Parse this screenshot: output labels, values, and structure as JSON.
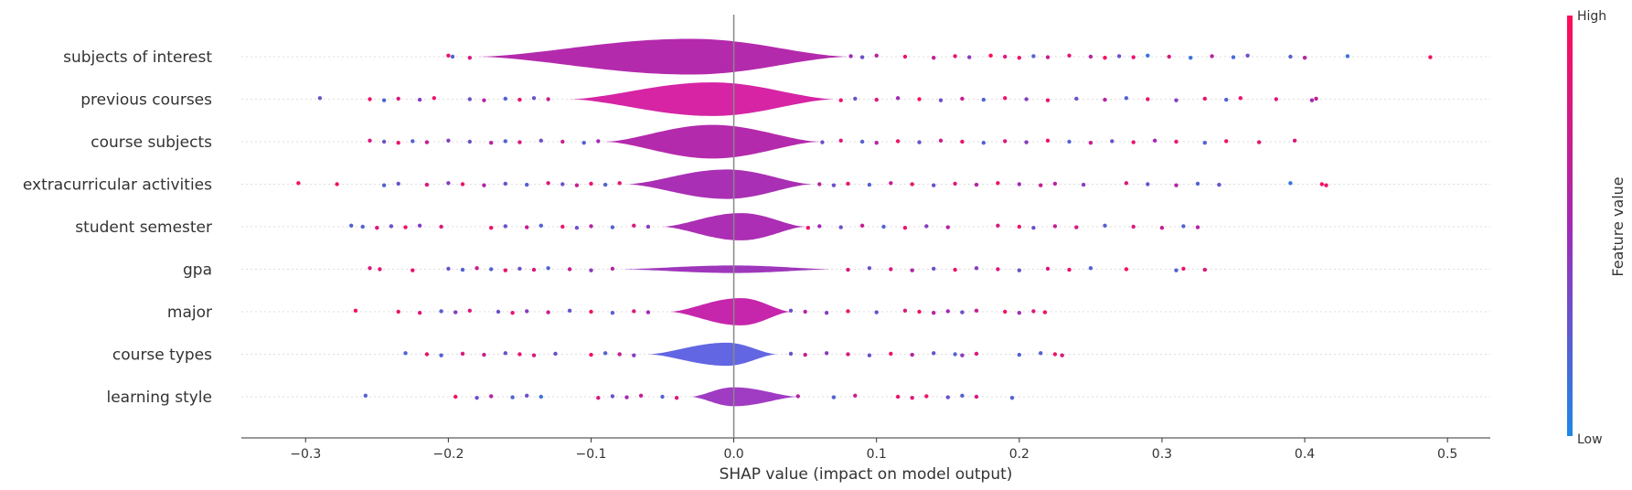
{
  "chart_data": {
    "type": "violin",
    "xlabel": "SHAP value (impact on model output)",
    "xlim": [
      -0.345,
      0.53
    ],
    "xticks": [
      -0.3,
      -0.2,
      -0.1,
      0.0,
      0.1,
      0.2,
      0.3,
      0.4,
      0.5
    ],
    "xtick_labels": [
      "−0.3",
      "−0.2",
      "−0.1",
      "0.0",
      "0.1",
      "0.2",
      "0.3",
      "0.4",
      "0.5"
    ],
    "colorbar": {
      "title": "Feature value",
      "high_label": "High",
      "low_label": "Low",
      "high_color": "#ff0d57",
      "low_color": "#1e88e5"
    },
    "features": [
      {
        "name": "subjects of interest",
        "body": [
          -0.18,
          0.08
        ],
        "peak": -0.03,
        "width": 0.85,
        "body_color": "#b01fa8",
        "points": [
          [
            -0.2,
            0.9
          ],
          [
            -0.197,
            0.2
          ],
          [
            -0.185,
            0.8
          ],
          [
            0.082,
            0.5
          ],
          [
            0.09,
            0.3
          ],
          [
            0.1,
            0.6
          ],
          [
            0.12,
            0.9
          ],
          [
            0.14,
            0.7
          ],
          [
            0.155,
            0.85
          ],
          [
            0.165,
            0.4
          ],
          [
            0.18,
            0.95
          ],
          [
            0.19,
            0.8
          ],
          [
            0.2,
            0.9
          ],
          [
            0.21,
            0.2
          ],
          [
            0.22,
            0.7
          ],
          [
            0.235,
            0.85
          ],
          [
            0.25,
            0.6
          ],
          [
            0.26,
            0.95
          ],
          [
            0.27,
            0.3
          ],
          [
            0.28,
            0.9
          ],
          [
            0.29,
            0.1
          ],
          [
            0.305,
            0.8
          ],
          [
            0.32,
            0.1
          ],
          [
            0.335,
            0.6
          ],
          [
            0.35,
            0.15
          ],
          [
            0.36,
            0.3
          ],
          [
            0.39,
            0.2
          ],
          [
            0.4,
            0.6
          ],
          [
            0.43,
            0.1
          ],
          [
            0.488,
            0.95
          ]
        ]
      },
      {
        "name": "previous courses",
        "body": [
          -0.115,
          0.07
        ],
        "peak": -0.015,
        "width": 0.8,
        "body_color": "#d418a0",
        "points": [
          [
            -0.29,
            0.3
          ],
          [
            -0.255,
            0.9
          ],
          [
            -0.245,
            0.2
          ],
          [
            -0.235,
            0.8
          ],
          [
            -0.22,
            0.4
          ],
          [
            -0.21,
            0.9
          ],
          [
            -0.185,
            0.3
          ],
          [
            -0.175,
            0.6
          ],
          [
            -0.16,
            0.2
          ],
          [
            -0.15,
            0.85
          ],
          [
            -0.14,
            0.3
          ],
          [
            -0.13,
            0.7
          ],
          [
            0.075,
            0.9
          ],
          [
            0.085,
            0.3
          ],
          [
            0.1,
            0.8
          ],
          [
            0.115,
            0.5
          ],
          [
            0.13,
            0.95
          ],
          [
            0.145,
            0.3
          ],
          [
            0.16,
            0.7
          ],
          [
            0.175,
            0.2
          ],
          [
            0.19,
            0.9
          ],
          [
            0.205,
            0.4
          ],
          [
            0.22,
            0.85
          ],
          [
            0.24,
            0.3
          ],
          [
            0.26,
            0.6
          ],
          [
            0.275,
            0.2
          ],
          [
            0.29,
            0.9
          ],
          [
            0.31,
            0.4
          ],
          [
            0.33,
            0.85
          ],
          [
            0.345,
            0.2
          ],
          [
            0.355,
            0.9
          ],
          [
            0.38,
            0.8
          ],
          [
            0.405,
            0.5
          ],
          [
            0.408,
            0.7
          ]
        ]
      },
      {
        "name": "course subjects",
        "body": [
          -0.09,
          0.06
        ],
        "peak": -0.015,
        "width": 0.8,
        "body_color": "#b01fa8",
        "points": [
          [
            -0.255,
            0.8
          ],
          [
            -0.245,
            0.3
          ],
          [
            -0.235,
            0.9
          ],
          [
            -0.225,
            0.2
          ],
          [
            -0.215,
            0.7
          ],
          [
            -0.2,
            0.4
          ],
          [
            -0.185,
            0.3
          ],
          [
            -0.17,
            0.6
          ],
          [
            -0.16,
            0.2
          ],
          [
            -0.15,
            0.8
          ],
          [
            -0.135,
            0.3
          ],
          [
            -0.12,
            0.7
          ],
          [
            -0.105,
            0.2
          ],
          [
            -0.095,
            0.5
          ],
          [
            0.062,
            0.3
          ],
          [
            0.075,
            0.8
          ],
          [
            0.09,
            0.2
          ],
          [
            0.1,
            0.6
          ],
          [
            0.115,
            0.9
          ],
          [
            0.13,
            0.3
          ],
          [
            0.145,
            0.7
          ],
          [
            0.16,
            0.9
          ],
          [
            0.175,
            0.2
          ],
          [
            0.19,
            0.8
          ],
          [
            0.205,
            0.4
          ],
          [
            0.22,
            0.9
          ],
          [
            0.235,
            0.2
          ],
          [
            0.25,
            0.7
          ],
          [
            0.265,
            0.3
          ],
          [
            0.28,
            0.85
          ],
          [
            0.295,
            0.5
          ],
          [
            0.31,
            0.9
          ],
          [
            0.33,
            0.2
          ],
          [
            0.345,
            0.9
          ],
          [
            0.368,
            0.85
          ],
          [
            0.393,
            0.8
          ]
        ]
      },
      {
        "name": "extracurricular activities",
        "body": [
          -0.075,
          0.055
        ],
        "peak": -0.005,
        "width": 0.7,
        "body_color": "#a424b0",
        "points": [
          [
            -0.305,
            0.95
          ],
          [
            -0.278,
            0.9
          ],
          [
            -0.245,
            0.2
          ],
          [
            -0.235,
            0.3
          ],
          [
            -0.215,
            0.8
          ],
          [
            -0.2,
            0.4
          ],
          [
            -0.19,
            0.9
          ],
          [
            -0.175,
            0.6
          ],
          [
            -0.16,
            0.3
          ],
          [
            -0.145,
            0.2
          ],
          [
            -0.13,
            0.8
          ],
          [
            -0.12,
            0.3
          ],
          [
            -0.11,
            0.7
          ],
          [
            -0.1,
            0.9
          ],
          [
            -0.09,
            0.2
          ],
          [
            -0.08,
            0.85
          ],
          [
            0.06,
            0.6
          ],
          [
            0.07,
            0.3
          ],
          [
            0.08,
            0.9
          ],
          [
            0.095,
            0.2
          ],
          [
            0.11,
            0.7
          ],
          [
            0.125,
            0.9
          ],
          [
            0.14,
            0.3
          ],
          [
            0.155,
            0.8
          ],
          [
            0.17,
            0.6
          ],
          [
            0.185,
            0.9
          ],
          [
            0.2,
            0.5
          ],
          [
            0.215,
            0.7
          ],
          [
            0.225,
            0.6
          ],
          [
            0.245,
            0.4
          ],
          [
            0.275,
            0.8
          ],
          [
            0.29,
            0.3
          ],
          [
            0.31,
            0.6
          ],
          [
            0.325,
            0.2
          ],
          [
            0.34,
            0.3
          ],
          [
            0.39,
            0.1
          ],
          [
            0.412,
            0.95
          ],
          [
            0.415,
            0.9
          ]
        ]
      },
      {
        "name": "student semester",
        "body": [
          -0.05,
          0.05
        ],
        "peak": 0.005,
        "width": 0.65,
        "body_color": "#a723b0",
        "points": [
          [
            -0.268,
            0.2
          ],
          [
            -0.26,
            0.2
          ],
          [
            -0.25,
            0.8
          ],
          [
            -0.24,
            0.3
          ],
          [
            -0.23,
            0.9
          ],
          [
            -0.22,
            0.4
          ],
          [
            -0.205,
            0.8
          ],
          [
            -0.17,
            0.9
          ],
          [
            -0.16,
            0.3
          ],
          [
            -0.145,
            0.7
          ],
          [
            -0.135,
            0.2
          ],
          [
            -0.12,
            0.9
          ],
          [
            -0.11,
            0.3
          ],
          [
            -0.1,
            0.6
          ],
          [
            -0.085,
            0.2
          ],
          [
            -0.07,
            0.8
          ],
          [
            -0.06,
            0.4
          ],
          [
            0.052,
            0.9
          ],
          [
            0.06,
            0.5
          ],
          [
            0.075,
            0.3
          ],
          [
            0.09,
            0.7
          ],
          [
            0.105,
            0.2
          ],
          [
            0.12,
            0.9
          ],
          [
            0.135,
            0.4
          ],
          [
            0.15,
            0.6
          ],
          [
            0.185,
            0.8
          ],
          [
            0.2,
            0.9
          ],
          [
            0.21,
            0.3
          ],
          [
            0.225,
            0.7
          ],
          [
            0.24,
            0.8
          ],
          [
            0.26,
            0.2
          ],
          [
            0.28,
            0.8
          ],
          [
            0.3,
            0.7
          ],
          [
            0.315,
            0.2
          ],
          [
            0.325,
            0.6
          ]
        ]
      },
      {
        "name": "gpa",
        "body": [
          -0.08,
          0.07
        ],
        "peak": 0.0,
        "width": 0.18,
        "body_color": "#9a2cb8",
        "points": [
          [
            -0.255,
            0.8
          ],
          [
            -0.248,
            0.85
          ],
          [
            -0.225,
            0.9
          ],
          [
            -0.2,
            0.3
          ],
          [
            -0.19,
            0.2
          ],
          [
            -0.18,
            0.7
          ],
          [
            -0.17,
            0.2
          ],
          [
            -0.16,
            0.9
          ],
          [
            -0.15,
            0.3
          ],
          [
            -0.14,
            0.8
          ],
          [
            -0.13,
            0.2
          ],
          [
            -0.115,
            0.7
          ],
          [
            -0.1,
            0.4
          ],
          [
            -0.085,
            0.6
          ],
          [
            0.08,
            0.8
          ],
          [
            0.095,
            0.3
          ],
          [
            0.11,
            0.8
          ],
          [
            0.125,
            0.6
          ],
          [
            0.14,
            0.3
          ],
          [
            0.155,
            0.9
          ],
          [
            0.17,
            0.4
          ],
          [
            0.185,
            0.8
          ],
          [
            0.2,
            0.3
          ],
          [
            0.22,
            0.8
          ],
          [
            0.235,
            0.9
          ],
          [
            0.25,
            0.2
          ],
          [
            0.275,
            0.95
          ],
          [
            0.31,
            0.2
          ],
          [
            0.315,
            0.9
          ],
          [
            0.33,
            0.8
          ]
        ]
      },
      {
        "name": "major",
        "body": [
          -0.045,
          0.04
        ],
        "peak": 0.005,
        "width": 0.65,
        "body_color": "#c31aa6",
        "points": [
          [
            -0.265,
            0.95
          ],
          [
            -0.235,
            0.9
          ],
          [
            -0.22,
            0.8
          ],
          [
            -0.205,
            0.2
          ],
          [
            -0.195,
            0.4
          ],
          [
            -0.185,
            0.8
          ],
          [
            -0.165,
            0.3
          ],
          [
            -0.155,
            0.9
          ],
          [
            -0.145,
            0.4
          ],
          [
            -0.13,
            0.7
          ],
          [
            -0.115,
            0.3
          ],
          [
            -0.1,
            0.9
          ],
          [
            -0.085,
            0.2
          ],
          [
            -0.07,
            0.8
          ],
          [
            -0.06,
            0.5
          ],
          [
            0.04,
            0.3
          ],
          [
            0.05,
            0.6
          ],
          [
            0.065,
            0.4
          ],
          [
            0.08,
            0.9
          ],
          [
            0.1,
            0.3
          ],
          [
            0.12,
            0.8
          ],
          [
            0.13,
            0.9
          ],
          [
            0.14,
            0.6
          ],
          [
            0.15,
            0.5
          ],
          [
            0.16,
            0.3
          ],
          [
            0.17,
            0.7
          ],
          [
            0.19,
            0.9
          ],
          [
            0.2,
            0.5
          ],
          [
            0.21,
            0.8
          ],
          [
            0.218,
            0.9
          ]
        ]
      },
      {
        "name": "course types",
        "body": [
          -0.06,
          0.03
        ],
        "peak": -0.005,
        "width": 0.55,
        "body_color": "#5a5ee0",
        "points": [
          [
            -0.23,
            0.2
          ],
          [
            -0.215,
            0.9
          ],
          [
            -0.205,
            0.2
          ],
          [
            -0.19,
            0.8
          ],
          [
            -0.175,
            0.7
          ],
          [
            -0.16,
            0.3
          ],
          [
            -0.15,
            0.9
          ],
          [
            -0.14,
            0.8
          ],
          [
            -0.125,
            0.3
          ],
          [
            -0.1,
            0.9
          ],
          [
            -0.09,
            0.2
          ],
          [
            -0.08,
            0.7
          ],
          [
            -0.07,
            0.4
          ],
          [
            0.04,
            0.3
          ],
          [
            0.05,
            0.7
          ],
          [
            0.065,
            0.4
          ],
          [
            0.08,
            0.8
          ],
          [
            0.095,
            0.3
          ],
          [
            0.11,
            0.9
          ],
          [
            0.125,
            0.6
          ],
          [
            0.14,
            0.3
          ],
          [
            0.155,
            0.2
          ],
          [
            0.16,
            0.4
          ],
          [
            0.17,
            0.8
          ],
          [
            0.2,
            0.2
          ],
          [
            0.215,
            0.2
          ],
          [
            0.225,
            0.9
          ],
          [
            0.23,
            0.8
          ]
        ]
      },
      {
        "name": "learning style",
        "body": [
          -0.03,
          0.045
        ],
        "peak": 0.0,
        "width": 0.45,
        "body_color": "#9b30c0",
        "points": [
          [
            -0.258,
            0.2
          ],
          [
            -0.195,
            0.95
          ],
          [
            -0.18,
            0.3
          ],
          [
            -0.17,
            0.6
          ],
          [
            -0.155,
            0.2
          ],
          [
            -0.145,
            0.3
          ],
          [
            -0.135,
            0.1
          ],
          [
            -0.095,
            0.8
          ],
          [
            -0.085,
            0.3
          ],
          [
            -0.075,
            0.5
          ],
          [
            -0.065,
            0.7
          ],
          [
            -0.05,
            0.2
          ],
          [
            -0.04,
            0.8
          ],
          [
            0.045,
            0.6
          ],
          [
            0.07,
            0.2
          ],
          [
            0.085,
            0.7
          ],
          [
            0.115,
            0.9
          ],
          [
            0.125,
            0.8
          ],
          [
            0.135,
            0.9
          ],
          [
            0.15,
            0.3
          ],
          [
            0.16,
            0.2
          ],
          [
            0.17,
            0.8
          ],
          [
            0.195,
            0.2
          ]
        ]
      }
    ]
  }
}
